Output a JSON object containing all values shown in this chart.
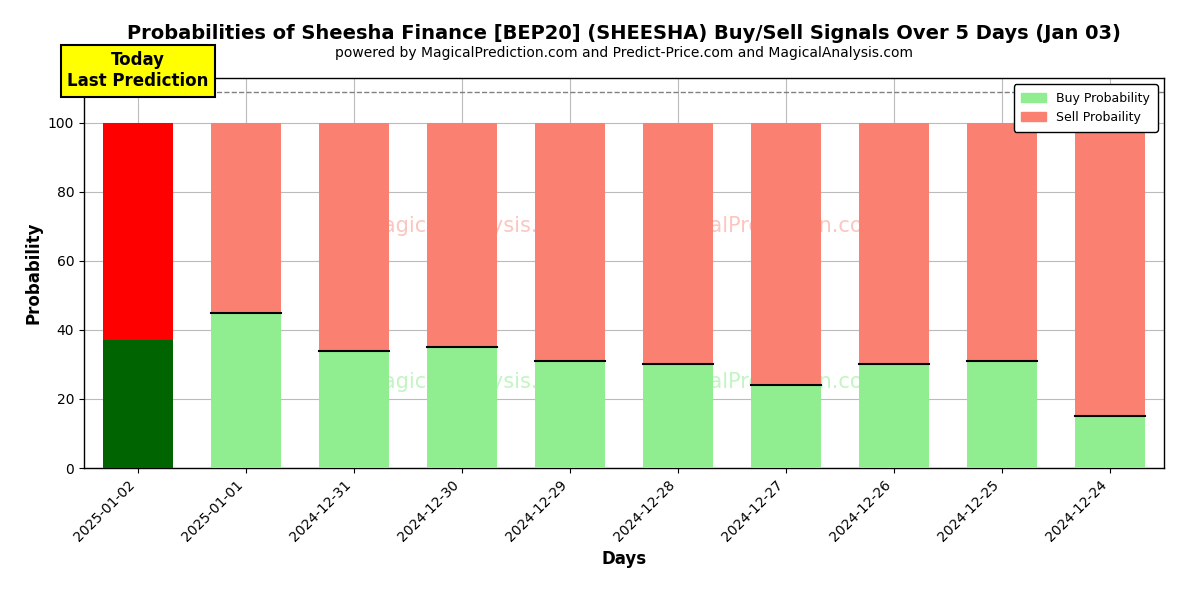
{
  "title": "Probabilities of Sheesha Finance [BEP20] (SHEESHA) Buy/Sell Signals Over 5 Days (Jan 03)",
  "subtitle": "powered by MagicalPrediction.com and Predict-Price.com and MagicalAnalysis.com",
  "xlabel": "Days",
  "ylabel": "Probability",
  "dates": [
    "2025-01-02",
    "2025-01-01",
    "2024-12-31",
    "2024-12-30",
    "2024-12-29",
    "2024-12-28",
    "2024-12-27",
    "2024-12-26",
    "2024-12-25",
    "2024-12-24"
  ],
  "buy_probs": [
    37,
    45,
    34,
    35,
    31,
    30,
    24,
    30,
    31,
    15
  ],
  "sell_probs": [
    63,
    55,
    66,
    65,
    69,
    70,
    76,
    70,
    69,
    85
  ],
  "buy_colors": [
    "#006400",
    "#90EE90",
    "#90EE90",
    "#90EE90",
    "#90EE90",
    "#90EE90",
    "#90EE90",
    "#90EE90",
    "#90EE90",
    "#90EE90"
  ],
  "sell_colors": [
    "#FF0000",
    "#FA8072",
    "#FA8072",
    "#FA8072",
    "#FA8072",
    "#FA8072",
    "#FA8072",
    "#FA8072",
    "#FA8072",
    "#FA8072"
  ],
  "today_label": "Today\nLast Prediction",
  "ylim": [
    0,
    113
  ],
  "yticks": [
    0,
    20,
    40,
    60,
    80,
    100
  ],
  "dashed_line_y": 109,
  "legend_buy": "Buy Probability",
  "legend_sell": "Sell Probaility",
  "bg_color": "#ffffff",
  "grid_color": "#bbbbbb",
  "title_fontsize": 14,
  "subtitle_fontsize": 10,
  "label_fontsize": 12,
  "tick_fontsize": 10,
  "bar_width": 0.65
}
